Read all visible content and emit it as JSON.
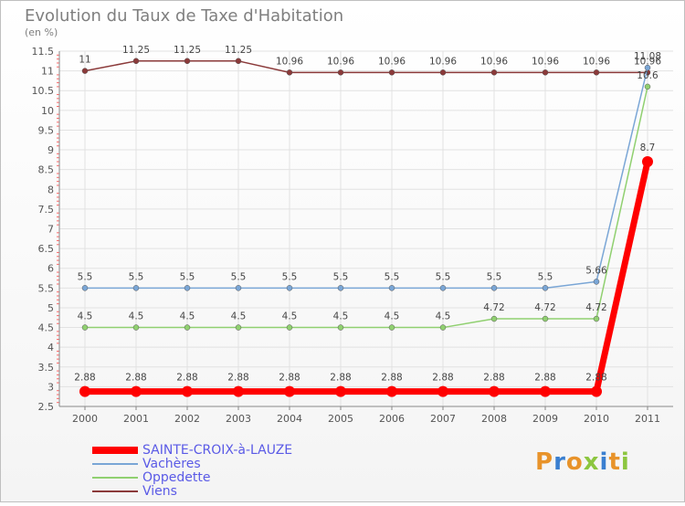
{
  "chart_data": {
    "type": "line",
    "title": "Evolution du Taux de Taxe d'Habitation",
    "unit": "(en %)",
    "categories": [
      "2000",
      "2001",
      "2002",
      "2003",
      "2004",
      "2005",
      "2006",
      "2007",
      "2008",
      "2009",
      "2010",
      "2011"
    ],
    "yticks": [
      "2.5",
      "3",
      "3.5",
      "4",
      "4.5",
      "5",
      "5.5",
      "6",
      "6.5",
      "7",
      "7.5",
      "8",
      "8.5",
      "9",
      "9.5",
      "10",
      "10.5",
      "11",
      "11.5"
    ],
    "ylim": [
      2.5,
      11.5
    ],
    "grid": true,
    "legend_position": "bottom-left",
    "series": [
      {
        "name": "SAINTE-CROIX-à-LAUZE",
        "color": "#ff0000",
        "values": [
          2.88,
          2.88,
          2.88,
          2.88,
          2.88,
          2.88,
          2.88,
          2.88,
          2.88,
          2.88,
          2.88,
          8.7
        ],
        "labels": [
          "2.88",
          "2.88",
          "2.88",
          "2.88",
          "2.88",
          "2.88",
          "2.88",
          "2.88",
          "2.88",
          "2.88",
          "2.88",
          "8.7"
        ]
      },
      {
        "name": "Vachères",
        "color": "#7aa6d6",
        "values": [
          5.5,
          5.5,
          5.5,
          5.5,
          5.5,
          5.5,
          5.5,
          5.5,
          5.5,
          5.5,
          5.66,
          11.08
        ],
        "labels": [
          "5.5",
          "5.5",
          "5.5",
          "5.5",
          "5.5",
          "5.5",
          "5.5",
          "5.5",
          "5.5",
          "5.5",
          "5.66",
          "11.08"
        ]
      },
      {
        "name": "Oppedette",
        "color": "#90d070",
        "values": [
          4.5,
          4.5,
          4.5,
          4.5,
          4.5,
          4.5,
          4.5,
          4.5,
          4.72,
          4.72,
          4.72,
          10.6
        ],
        "labels": [
          "4.5",
          "4.5",
          "4.5",
          "4.5",
          "4.5",
          "4.5",
          "4.5",
          "4.5",
          "4.72",
          "4.72",
          "4.72",
          "10.6"
        ]
      },
      {
        "name": "Viens",
        "color": "#8b3a3a",
        "values": [
          11,
          11.25,
          11.25,
          11.25,
          10.96,
          10.96,
          10.96,
          10.96,
          10.96,
          10.96,
          10.96,
          10.96
        ],
        "labels": [
          "11",
          "11.25",
          "11.25",
          "11.25",
          "10.96",
          "10.96",
          "10.96",
          "10.96",
          "10.96",
          "10.96",
          "10.96",
          "10.96"
        ]
      }
    ]
  },
  "branding": {
    "logo_text": "Proxiti"
  }
}
